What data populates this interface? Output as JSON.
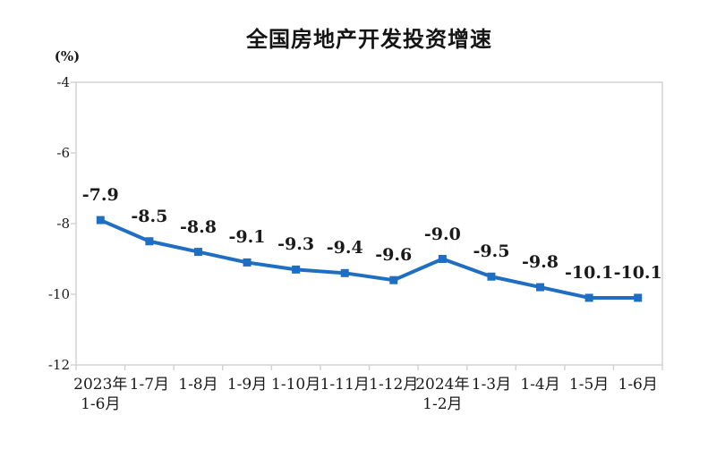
{
  "title": "全国房地产开发投资增速",
  "colors": {
    "line": "#1f6ec2",
    "marker": "#1f6ec2",
    "axis": "#d2d2d2",
    "text": "#1a1a1a",
    "background": "#ffffff"
  },
  "chart_data": {
    "type": "line",
    "title": "全国房地产开发投资增速",
    "ylabel": "(%)",
    "xlabel": "",
    "categories": [
      "2023年\n1-6月",
      "1-7月",
      "1-8月",
      "1-9月",
      "1-10月",
      "1-11月",
      "1-12月",
      "2024年\n1-2月",
      "1-3月",
      "1-4月",
      "1-5月",
      "1-6月"
    ],
    "values": [
      -7.9,
      -8.5,
      -8.8,
      -9.1,
      -9.3,
      -9.4,
      -9.6,
      -9.0,
      -9.5,
      -9.8,
      -10.1,
      -10.1
    ],
    "data_labels": [
      "-7.9",
      "-8.5",
      "-8.8",
      "-9.1",
      "-9.3",
      "-9.4",
      "-9.6",
      "-9.0",
      "-9.5",
      "-9.8",
      "-10.1",
      "-10.1"
    ],
    "ylim": [
      -12,
      -4
    ],
    "yticks": [
      -4,
      -6,
      -8,
      -10,
      -12
    ],
    "grid": false,
    "legend": false,
    "marker": "square",
    "series": [
      {
        "name": "全国房地产开发投资增速",
        "values": [
          -7.9,
          -8.5,
          -8.8,
          -9.1,
          -9.3,
          -9.4,
          -9.6,
          -9.0,
          -9.5,
          -9.8,
          -10.1,
          -10.1
        ]
      }
    ]
  }
}
